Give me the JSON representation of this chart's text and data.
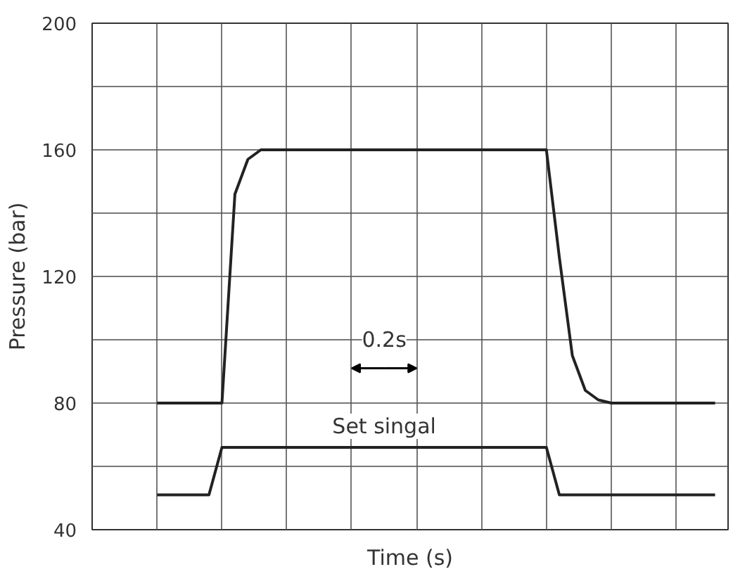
{
  "chart_data": {
    "type": "line",
    "xlabel": "Time (s)",
    "ylabel": "Pressure (bar)",
    "categories": [
      null,
      null,
      null,
      null,
      null,
      null,
      null,
      null,
      null,
      null,
      null,
      null,
      null,
      null,
      null,
      null,
      null,
      null,
      null,
      null,
      null,
      null,
      null,
      null,
      null,
      null,
      null,
      null,
      null,
      null,
      null,
      null,
      null,
      null,
      null,
      null,
      null,
      null,
      null,
      null,
      null,
      null,
      null,
      null
    ],
    "ylim": [
      40,
      200
    ],
    "yticks": [
      40,
      {
        "value": 60,
        "label": null
      },
      80,
      {
        "value": 100,
        "label": null
      },
      120,
      {
        "value": 140,
        "label": null
      },
      160,
      {
        "value": 180,
        "label": null
      },
      200
    ],
    "tick_labels": "y",
    "grid": true,
    "series": [
      {
        "color": "#222222",
        "values": [
          80,
          80,
          80,
          80,
          80,
          80,
          146,
          157,
          160,
          160,
          160,
          160,
          160,
          160,
          160,
          160,
          160,
          160,
          160,
          160,
          160,
          160,
          160,
          160,
          160,
          160,
          160,
          160,
          160,
          160,
          160,
          126,
          95,
          84,
          81,
          80,
          80,
          80,
          80,
          80,
          80,
          80,
          80,
          80
        ]
      },
      {
        "name": "Set singal",
        "color": "#222222",
        "values": [
          51,
          51,
          51,
          51,
          51,
          66,
          66,
          66,
          66,
          66,
          66,
          66,
          66,
          66,
          66,
          66,
          66,
          66,
          66,
          66,
          66,
          66,
          66,
          66,
          66,
          66,
          66,
          66,
          66,
          66,
          66,
          51,
          51,
          51,
          51,
          51,
          51,
          51,
          51,
          51,
          51,
          51,
          51,
          51
        ]
      }
    ],
    "annotations": [
      "0.2s"
    ]
  }
}
